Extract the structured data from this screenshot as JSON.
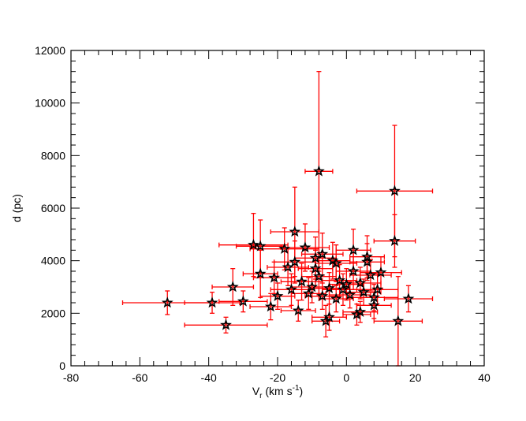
{
  "chart_data": {
    "type": "scatter",
    "title": "",
    "xlabel": "V",
    "xlabel_sub": "r",
    "xlabel_unit_pre": " (km s",
    "xlabel_unit_sup": "-1",
    "xlabel_unit_post": ")",
    "ylabel": "d (pc)",
    "xlim": [
      -80,
      40
    ],
    "ylim": [
      0,
      12000
    ],
    "xticks": [
      -80,
      -60,
      -40,
      -20,
      0,
      20,
      40
    ],
    "yticks": [
      0,
      2000,
      4000,
      6000,
      8000,
      10000,
      12000
    ],
    "grid": false,
    "marker": "star",
    "marker_color": "#000000",
    "errorbar_color": "#ff0000",
    "points": [
      {
        "x": -52,
        "y": 2400,
        "xerr": 13,
        "yerr": 450
      },
      {
        "x": -39,
        "y": 2400,
        "xerr": 8,
        "yerr": 400
      },
      {
        "x": -35,
        "y": 1550,
        "xerr": 12,
        "yerr": 300
      },
      {
        "x": -33,
        "y": 3000,
        "xerr": 6,
        "yerr": 700
      },
      {
        "x": -30,
        "y": 2450,
        "xerr": 7,
        "yerr": 400
      },
      {
        "x": -27,
        "y": 4600,
        "xerr": 10,
        "yerr": 1200
      },
      {
        "x": -25,
        "y": 4550,
        "xerr": 7,
        "yerr": 1000
      },
      {
        "x": -25,
        "y": 3500,
        "xerr": 5,
        "yerr": 900
      },
      {
        "x": -22,
        "y": 2250,
        "xerr": 6,
        "yerr": 500
      },
      {
        "x": -21,
        "y": 3350,
        "xerr": 6,
        "yerr": 600
      },
      {
        "x": -20,
        "y": 2650,
        "xerr": 5,
        "yerr": 500
      },
      {
        "x": -18,
        "y": 4450,
        "xerr": 10,
        "yerr": 800
      },
      {
        "x": -17,
        "y": 3750,
        "xerr": 6,
        "yerr": 700
      },
      {
        "x": -16,
        "y": 2900,
        "xerr": 6,
        "yerr": 600
      },
      {
        "x": -15,
        "y": 5100,
        "xerr": 7,
        "yerr": 1700
      },
      {
        "x": -15,
        "y": 3950,
        "xerr": 6,
        "yerr": 800
      },
      {
        "x": -14,
        "y": 2100,
        "xerr": 5,
        "yerr": 400
      },
      {
        "x": -13,
        "y": 3200,
        "xerr": 6,
        "yerr": 700
      },
      {
        "x": -12,
        "y": 4500,
        "xerr": 7,
        "yerr": 900
      },
      {
        "x": -11,
        "y": 2750,
        "xerr": 5,
        "yerr": 600
      },
      {
        "x": -10,
        "y": 3000,
        "xerr": 6,
        "yerr": 600
      },
      {
        "x": -9,
        "y": 3700,
        "xerr": 5,
        "yerr": 700
      },
      {
        "x": -9,
        "y": 4100,
        "xerr": 6,
        "yerr": 800
      },
      {
        "x": -8,
        "y": 7400,
        "xerr": 4,
        "yerr": 3800
      },
      {
        "x": -8,
        "y": 3400,
        "xerr": 5,
        "yerr": 700
      },
      {
        "x": -7,
        "y": 4250,
        "xerr": 6,
        "yerr": 800
      },
      {
        "x": -7,
        "y": 2650,
        "xerr": 5,
        "yerr": 500
      },
      {
        "x": -6,
        "y": 1700,
        "xerr": 4,
        "yerr": 600
      },
      {
        "x": -5,
        "y": 1850,
        "xerr": 5,
        "yerr": 500
      },
      {
        "x": -5,
        "y": 2950,
        "xerr": 6,
        "yerr": 600
      },
      {
        "x": -4,
        "y": 4000,
        "xerr": 5,
        "yerr": 700
      },
      {
        "x": -3,
        "y": 3900,
        "xerr": 6,
        "yerr": 700
      },
      {
        "x": -3,
        "y": 2550,
        "xerr": 5,
        "yerr": 500
      },
      {
        "x": -2,
        "y": 3250,
        "xerr": 5,
        "yerr": 600
      },
      {
        "x": -1,
        "y": 2900,
        "xerr": 6,
        "yerr": 600
      },
      {
        "x": 0,
        "y": 3100,
        "xerr": 5,
        "yerr": 600
      },
      {
        "x": 1,
        "y": 2700,
        "xerr": 6,
        "yerr": 500
      },
      {
        "x": 2,
        "y": 4400,
        "xerr": 5,
        "yerr": 800
      },
      {
        "x": 2,
        "y": 3600,
        "xerr": 5,
        "yerr": 700
      },
      {
        "x": 3,
        "y": 1950,
        "xerr": 4,
        "yerr": 400
      },
      {
        "x": 4,
        "y": 2050,
        "xerr": 5,
        "yerr": 400
      },
      {
        "x": 4,
        "y": 3150,
        "xerr": 6,
        "yerr": 600
      },
      {
        "x": 5,
        "y": 2800,
        "xerr": 5,
        "yerr": 500
      },
      {
        "x": 6,
        "y": 3950,
        "xerr": 5,
        "yerr": 700
      },
      {
        "x": 6,
        "y": 4150,
        "xerr": 5,
        "yerr": 800
      },
      {
        "x": 7,
        "y": 3450,
        "xerr": 6,
        "yerr": 600
      },
      {
        "x": 8,
        "y": 2300,
        "xerr": 5,
        "yerr": 500
      },
      {
        "x": 8,
        "y": 2600,
        "xerr": 7,
        "yerr": 500
      },
      {
        "x": 9,
        "y": 2900,
        "xerr": 6,
        "yerr": 600
      },
      {
        "x": 10,
        "y": 3550,
        "xerr": 6,
        "yerr": 600
      },
      {
        "x": 14,
        "y": 6650,
        "xerr": 11,
        "yerr": 2500
      },
      {
        "x": 14,
        "y": 4750,
        "xerr": 6,
        "yerr": 1000
      },
      {
        "x": 15,
        "y": 1700,
        "xerr": 7,
        "yerr": 1700
      },
      {
        "x": 18,
        "y": 2550,
        "xerr": 7,
        "yerr": 500
      }
    ]
  }
}
